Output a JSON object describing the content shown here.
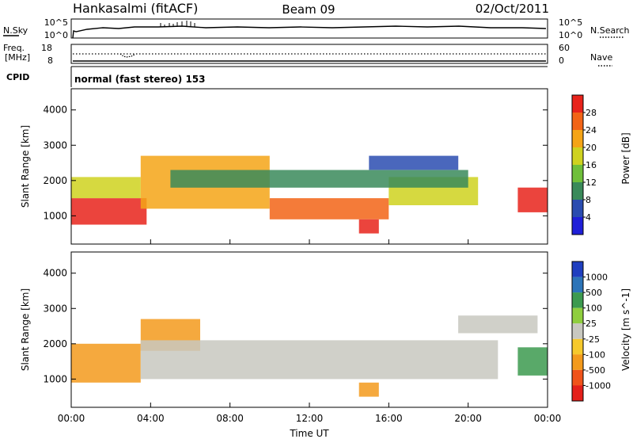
{
  "header": {
    "title": "Hankasalmi (fitACF)",
    "beam": "Beam 09",
    "date": "02/Oct/2011",
    "nsky_label": "N.Sky",
    "nsearch_label": "N.Search",
    "noise_ticks_left": [
      "10^5",
      "10^0"
    ],
    "noise_ticks_right": [
      "10^5",
      "10^0"
    ],
    "freq_label_line1": "Freq.",
    "freq_label_line2": "[MHz]",
    "freq_ticks": [
      "18",
      "8"
    ],
    "nave_label": "Nave",
    "nave_ticks": [
      "60",
      "0"
    ],
    "cpid_label": "CPID",
    "cpid_text": "normal (fast stereo) 153"
  },
  "chart_data": [
    {
      "type": "heatmap",
      "name": "power",
      "ylabel": "Slant Range [km]",
      "xlabel": "",
      "yticks": [
        "1000",
        "2000",
        "3000",
        "4000"
      ],
      "ylim": [
        200,
        4600
      ],
      "colorbar_label": "Power [dB]",
      "colorbar_ticks": [
        "4",
        "8",
        "12",
        "16",
        "20",
        "24",
        "28"
      ],
      "colorbar_colors": [
        "#1f1fd8",
        "#2a4cb0",
        "#3a8a5a",
        "#6fbf3a",
        "#cfd21f",
        "#f5a416",
        "#f26416",
        "#e8231b"
      ],
      "bands": [
        {
          "x": [
            0.0,
            3.8
          ],
          "y": [
            750,
            1500
          ],
          "value": 28
        },
        {
          "x": [
            0.0,
            3.5
          ],
          "y": [
            1500,
            2100
          ],
          "value": 16
        },
        {
          "x": [
            3.5,
            10.0
          ],
          "y": [
            1200,
            2700
          ],
          "value": 20
        },
        {
          "x": [
            10.0,
            16.0
          ],
          "y": [
            900,
            1500
          ],
          "value": 24
        },
        {
          "x": [
            14.5,
            15.5
          ],
          "y": [
            500,
            900
          ],
          "value": 28
        },
        {
          "x": [
            16.0,
            20.5
          ],
          "y": [
            1300,
            2100
          ],
          "value": 16
        },
        {
          "x": [
            22.5,
            24.0
          ],
          "y": [
            1100,
            1800
          ],
          "value": 28
        },
        {
          "x": [
            5.0,
            20.0
          ],
          "y": [
            1800,
            2300
          ],
          "value": 8
        },
        {
          "x": [
            15.0,
            19.5
          ],
          "y": [
            2300,
            2700
          ],
          "value": 4
        }
      ]
    },
    {
      "type": "heatmap",
      "name": "velocity",
      "ylabel": "Slant Range [km]",
      "xlabel": "Time UT",
      "yticks": [
        "1000",
        "2000",
        "3000",
        "4000"
      ],
      "ylim": [
        200,
        4600
      ],
      "xticks": [
        "00:00",
        "04:00",
        "08:00",
        "12:00",
        "16:00",
        "20:00",
        "00:00"
      ],
      "xlim": [
        0,
        24
      ],
      "colorbar_label": "Velocity [m s^-1]",
      "colorbar_ticks": [
        "1000",
        "500",
        "100",
        "25",
        "-25",
        "-100",
        "-500",
        "-1000"
      ],
      "colorbar_colors": [
        "#1f3fc0",
        "#2c74b8",
        "#3c9a4f",
        "#8fce3e",
        "#c8c8c0",
        "#f6c92c",
        "#f39a1c",
        "#f0531a",
        "#e4201a"
      ],
      "bands": [
        {
          "x": [
            0.0,
            3.5
          ],
          "y": [
            900,
            2000
          ],
          "value": -300
        },
        {
          "x": [
            3.5,
            6.5
          ],
          "y": [
            1800,
            2700
          ],
          "value": -150
        },
        {
          "x": [
            3.5,
            21.5
          ],
          "y": [
            1000,
            2100
          ],
          "value": 0
        },
        {
          "x": [
            14.5,
            15.5
          ],
          "y": [
            500,
            900
          ],
          "value": -400
        },
        {
          "x": [
            19.5,
            23.5
          ],
          "y": [
            2300,
            2800
          ],
          "value": 0
        },
        {
          "x": [
            22.5,
            24.0
          ],
          "y": [
            1100,
            1900
          ],
          "value": 150
        }
      ]
    }
  ]
}
